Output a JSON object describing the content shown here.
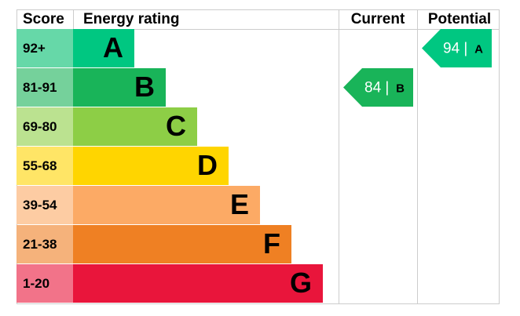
{
  "header": {
    "score": "Score",
    "rating": "Energy rating",
    "current": "Current",
    "potential": "Potential"
  },
  "bands": [
    {
      "score": "92+",
      "letter": "A",
      "color": "#00c781",
      "light": "#66d8a8"
    },
    {
      "score": "81-91",
      "letter": "B",
      "color": "#19b459",
      "light": "#75d19b"
    },
    {
      "score": "69-80",
      "letter": "C",
      "color": "#8dce46",
      "light": "#bbe290"
    },
    {
      "score": "55-68",
      "letter": "D",
      "color": "#ffd500",
      "light": "#ffe566"
    },
    {
      "score": "39-54",
      "letter": "E",
      "color": "#fcaa65",
      "light": "#fdcca3"
    },
    {
      "score": "21-38",
      "letter": "F",
      "color": "#ef8023",
      "light": "#f5b27b"
    },
    {
      "score": "1-20",
      "letter": "G",
      "color": "#e9153b",
      "light": "#f27389"
    }
  ],
  "current": {
    "score": "84 |",
    "letter": "B"
  },
  "potential": {
    "score": "94 |",
    "letter": "A"
  }
}
